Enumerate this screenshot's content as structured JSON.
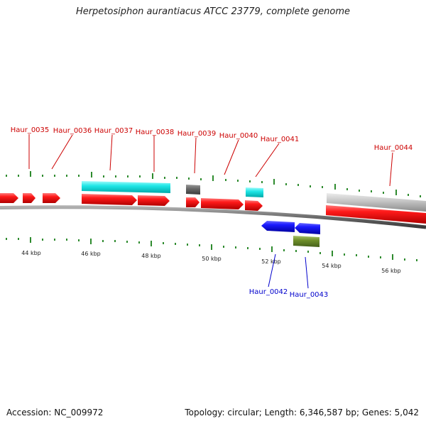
{
  "title": "Herpetosiphon aurantiacus ATCC 23779, complete genome",
  "accession_label": "Accession: NC_009972",
  "stats_label": "Topology: circular; Length: 6,346,587 bp; Genes: 5,042",
  "colors": {
    "forward_gene": "#ff0000",
    "reverse_gene": "#0000ee",
    "cyan_feature": "#00e5e5",
    "gray_feature": "#666666",
    "light_gray_feature": "#c0c0c0",
    "olive_feature": "#6b8e23",
    "tick": "#2e8b2e",
    "label_top": "#cc0000",
    "label_bottom": "#0000cc"
  },
  "kbp_labels": [
    "44 kbp",
    "46 kbp",
    "48 kbp",
    "50 kbp",
    "52 kbp",
    "54 kbp",
    "56 kbp"
  ],
  "gene_labels_top": [
    "Haur_0035",
    "Haur_0036",
    "Haur_0037",
    "Haur_0038",
    "Haur_0039",
    "Haur_0040",
    "Haur_0041",
    "Haur_0044"
  ],
  "gene_labels_bottom": [
    "Haur_0042",
    "Haur_0043"
  ]
}
